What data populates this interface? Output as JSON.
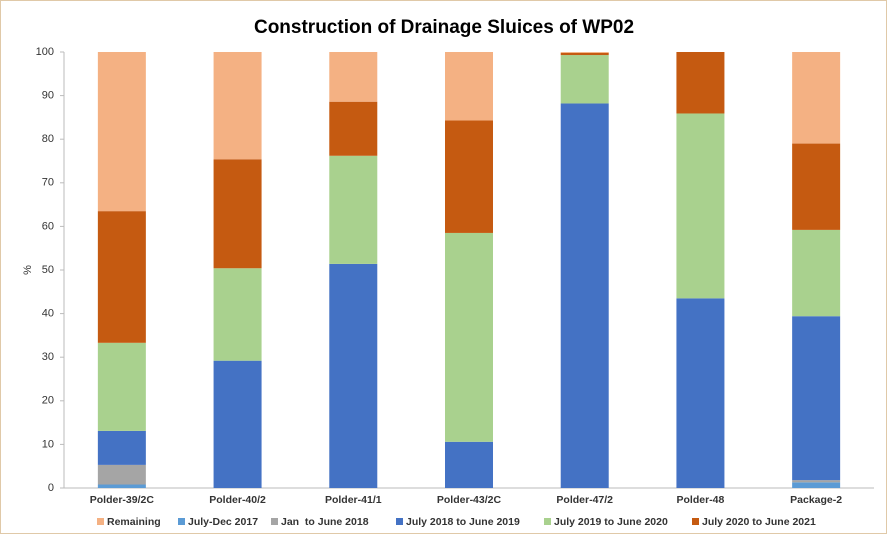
{
  "chart_data": {
    "type": "stacked_bar",
    "title": "Construction of Drainage Sluices of WP02",
    "y_label": "%",
    "categories": [
      "Polder-39/2C",
      "Polder-40/2",
      "Polder-41/1",
      "Polder-43/2C",
      "Polder-47/2",
      "Polder-48",
      "Package-2"
    ],
    "series": [
      {
        "name": "Remaining",
        "color": "#f4b183",
        "values": [
          36.5,
          24.6,
          11.4,
          15.7,
          0.2,
          0,
          21
        ]
      },
      {
        "name": "July-Dec 2017",
        "color": "#5b9bd5",
        "values": [
          0.8,
          0,
          0,
          0,
          0,
          0,
          1.3
        ]
      },
      {
        "name": "Jan  to June 2018",
        "color": "#a5a5a5",
        "values": [
          4.5,
          0,
          0,
          0,
          0,
          0,
          0.5
        ]
      },
      {
        "name": "July 2018 to June 2019",
        "color": "#4472c4",
        "values": [
          7.8,
          29.2,
          51.4,
          10.6,
          88.2,
          43.5,
          37.6
        ]
      },
      {
        "name": "July 2019 to June 2020",
        "color": "#a9d18e",
        "values": [
          20.2,
          21.2,
          24.8,
          47.9,
          11.1,
          42.4,
          19.8
        ]
      },
      {
        "name": "July 2020 to June 2021",
        "color": "#c55a11",
        "values": [
          30.2,
          25,
          12.4,
          25.8,
          0.5,
          14.1,
          19.8
        ]
      }
    ],
    "ylim": [
      0,
      100
    ],
    "yticks": [
      0,
      10,
      20,
      30,
      40,
      50,
      60,
      70,
      80,
      90,
      100
    ],
    "grid": false,
    "legend": "bottom"
  }
}
